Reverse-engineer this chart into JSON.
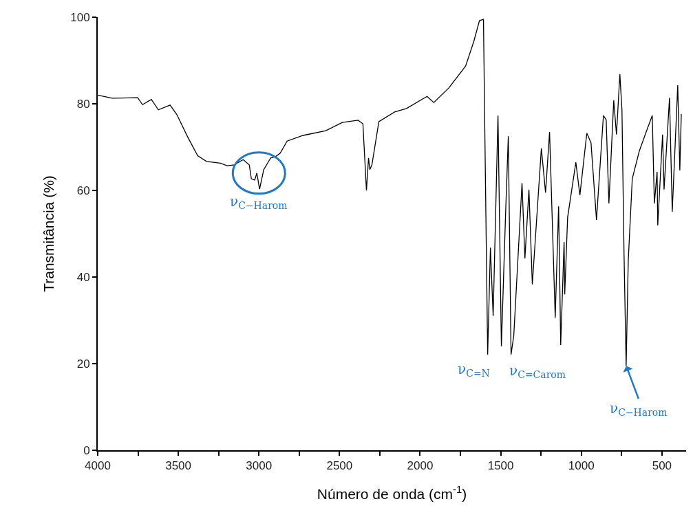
{
  "chart_data": {
    "type": "line",
    "xlabel": "Número de onda (cm$^{-1}$)",
    "ylabel": "Transmitância (%)",
    "xlim": [
      4000,
      350
    ],
    "ylim": [
      0,
      100
    ],
    "xticks": [
      4000,
      {
        "value": 3750,
        "label": null
      },
      3500,
      {
        "value": 3250,
        "label": null
      },
      3000,
      {
        "value": 2750,
        "label": null
      },
      2500,
      {
        "value": 2250,
        "label": null
      },
      2000,
      {
        "value": 1750,
        "label": null
      },
      1500,
      {
        "value": 1250,
        "label": null
      },
      1000,
      {
        "value": 750,
        "label": null
      },
      500
    ],
    "yticks": [
      0,
      20,
      40,
      60,
      80,
      100
    ],
    "marker": "none",
    "line_style": "solid",
    "series": [
      {
        "color": "#000000",
        "x": [
          4000,
          3910,
          3752,
          3722,
          3667,
          3624,
          3551,
          3509,
          3440,
          3380,
          3325,
          3239,
          3197,
          3154,
          3098,
          3060,
          3047,
          3026,
          3013,
          2996,
          2970,
          2927,
          2897,
          2868,
          2825,
          2726,
          2585,
          2483,
          2385,
          2355,
          2342,
          2333,
          2320,
          2312,
          2299,
          2256,
          2158,
          2085,
          1957,
          1915,
          1821,
          1718,
          1667,
          1632,
          1607,
          1598,
          1581,
          1564,
          1547,
          1517,
          1496,
          1470,
          1453,
          1436,
          1419,
          1368,
          1350,
          1325,
          1304,
          1248,
          1222,
          1197,
          1162,
          1141,
          1128,
          1107,
          1103,
          1085,
          1034,
          1009,
          966,
          940,
          906,
          863,
          846,
          829,
          799,
          782,
          761,
          748,
          735,
          722,
          709,
          684,
          641,
          598,
          560,
          547,
          530,
          526,
          496,
          487,
          453,
          436,
          402,
          389,
          380
        ],
        "values": [
          82,
          81.3,
          81.4,
          79.8,
          81,
          78.6,
          79.7,
          77.5,
          72.2,
          68,
          66.7,
          66.3,
          65.7,
          65.9,
          67.1,
          65.9,
          62.7,
          62.4,
          64,
          60.3,
          64.8,
          67.5,
          67.8,
          68.6,
          71.4,
          72.7,
          73.8,
          75.7,
          76.2,
          75.4,
          66.3,
          60,
          67.5,
          64.8,
          65.9,
          75.9,
          78.1,
          78.9,
          81.7,
          80.3,
          83.7,
          88.7,
          94.4,
          99.2,
          99.5,
          71.6,
          22.1,
          46.8,
          31,
          77.3,
          24,
          54.4,
          72.5,
          22.1,
          26.5,
          61.7,
          44.3,
          60.2,
          38.3,
          69.7,
          59.5,
          73.5,
          30.6,
          56.3,
          24.3,
          48.1,
          36,
          53.8,
          66.5,
          58.9,
          73.2,
          71,
          53.2,
          77.3,
          76.3,
          57,
          80.8,
          72.9,
          86.8,
          78.6,
          44.9,
          19.5,
          43.7,
          62.7,
          69,
          73.5,
          77.3,
          57,
          64.3,
          51.9,
          72.9,
          60.2,
          81.4,
          55.1,
          84.3,
          64.6,
          77.6
        ]
      }
    ],
    "annotations": [
      {
        "text": "ν$_{C−Harom}$",
        "x": 3000,
        "y": 64
      },
      {
        "text": "ν$_{C=N}$",
        "x": 1581,
        "y": 22.1
      },
      {
        "text": "ν$_{C=Carom}$",
        "x": 1436,
        "y": 22.1
      },
      {
        "text": "ν$_{C−Harom}$",
        "x": 722,
        "y": 19.5
      }
    ]
  }
}
